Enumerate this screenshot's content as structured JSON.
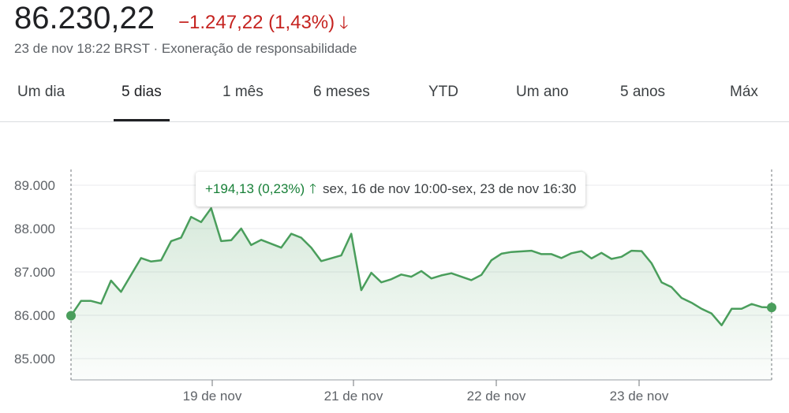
{
  "header": {
    "price": "86.230,22",
    "change": "−1.247,22 (1,43%)",
    "arrow_icon": "arrow-down-icon",
    "timestamp": "23 de nov 18:22 BRST",
    "separator": "·",
    "disclaimer": "Exoneração de responsabilidade"
  },
  "tabs": [
    {
      "label": "Um dia",
      "active": false
    },
    {
      "label": "5 dias",
      "active": true
    },
    {
      "label": "1 mês",
      "active": false
    },
    {
      "label": "6 meses",
      "active": false
    },
    {
      "label": "YTD",
      "active": false
    },
    {
      "label": "Um ano",
      "active": false
    },
    {
      "label": "5 anos",
      "active": false
    },
    {
      "label": "Máx",
      "active": false
    }
  ],
  "tooltip": {
    "change": "+194,13 (0,23%)",
    "arrow_icon": "arrow-up-icon",
    "range": "sex, 16 de nov 10:00-sex, 23 de nov 16:30"
  },
  "colors": {
    "line": "#4a9e5c",
    "down": "#c5221f",
    "up": "#188038"
  },
  "chart_data": {
    "type": "area",
    "ylim": [
      85000,
      89200
    ],
    "yticks": [
      85000,
      86000,
      87000,
      88000,
      89000
    ],
    "ytick_labels": [
      "85.000",
      "86.000",
      "87.000",
      "88.000",
      "89.000"
    ],
    "xticks": [
      {
        "index": 20,
        "label": "19 de nov"
      },
      {
        "index": 40,
        "label": "21 de nov"
      },
      {
        "index": 60,
        "label": "22 de nov"
      },
      {
        "index": 80,
        "label": "23 de nov"
      }
    ],
    "x_count": 100,
    "series": [
      {
        "points": [
          [
            0,
            85990
          ],
          [
            1,
            86330
          ],
          [
            2,
            86330
          ],
          [
            3,
            86270
          ],
          [
            4,
            86800
          ],
          [
            5,
            86540
          ],
          [
            7,
            87320
          ],
          [
            8,
            87240
          ],
          [
            9,
            87270
          ],
          [
            10,
            87710
          ],
          [
            11,
            87790
          ],
          [
            12,
            88270
          ],
          [
            13,
            88150
          ],
          [
            14,
            88470
          ],
          [
            15,
            87710
          ],
          [
            16,
            87730
          ],
          [
            17,
            88000
          ],
          [
            18,
            87620
          ],
          [
            19,
            87740
          ],
          [
            21,
            87560
          ],
          [
            22,
            87880
          ],
          [
            23,
            87790
          ],
          [
            24,
            87560
          ],
          [
            25,
            87250
          ],
          [
            27,
            87380
          ],
          [
            28,
            87880
          ],
          [
            29,
            86580
          ],
          [
            30,
            86980
          ],
          [
            31,
            86760
          ],
          [
            32,
            86830
          ],
          [
            33,
            86940
          ],
          [
            34,
            86890
          ],
          [
            35,
            87020
          ],
          [
            36,
            86850
          ],
          [
            37,
            86920
          ],
          [
            38,
            86970
          ],
          [
            40,
            86810
          ],
          [
            41,
            86930
          ],
          [
            42,
            87270
          ],
          [
            43,
            87420
          ],
          [
            44,
            87460
          ],
          [
            46,
            87490
          ],
          [
            47,
            87410
          ],
          [
            48,
            87410
          ],
          [
            49,
            87320
          ],
          [
            50,
            87430
          ],
          [
            51,
            87480
          ],
          [
            52,
            87310
          ],
          [
            53,
            87440
          ],
          [
            54,
            87300
          ],
          [
            55,
            87350
          ],
          [
            56,
            87490
          ],
          [
            57,
            87480
          ],
          [
            58,
            87200
          ],
          [
            59,
            86760
          ],
          [
            60,
            86650
          ],
          [
            61,
            86400
          ],
          [
            62,
            86290
          ],
          [
            63,
            86150
          ],
          [
            64,
            86040
          ],
          [
            65,
            85770
          ],
          [
            66,
            86150
          ],
          [
            67,
            86150
          ],
          [
            68,
            86260
          ],
          [
            69,
            86190
          ],
          [
            70,
            86180
          ]
        ]
      }
    ],
    "start_marker": true,
    "end_marker": true
  }
}
